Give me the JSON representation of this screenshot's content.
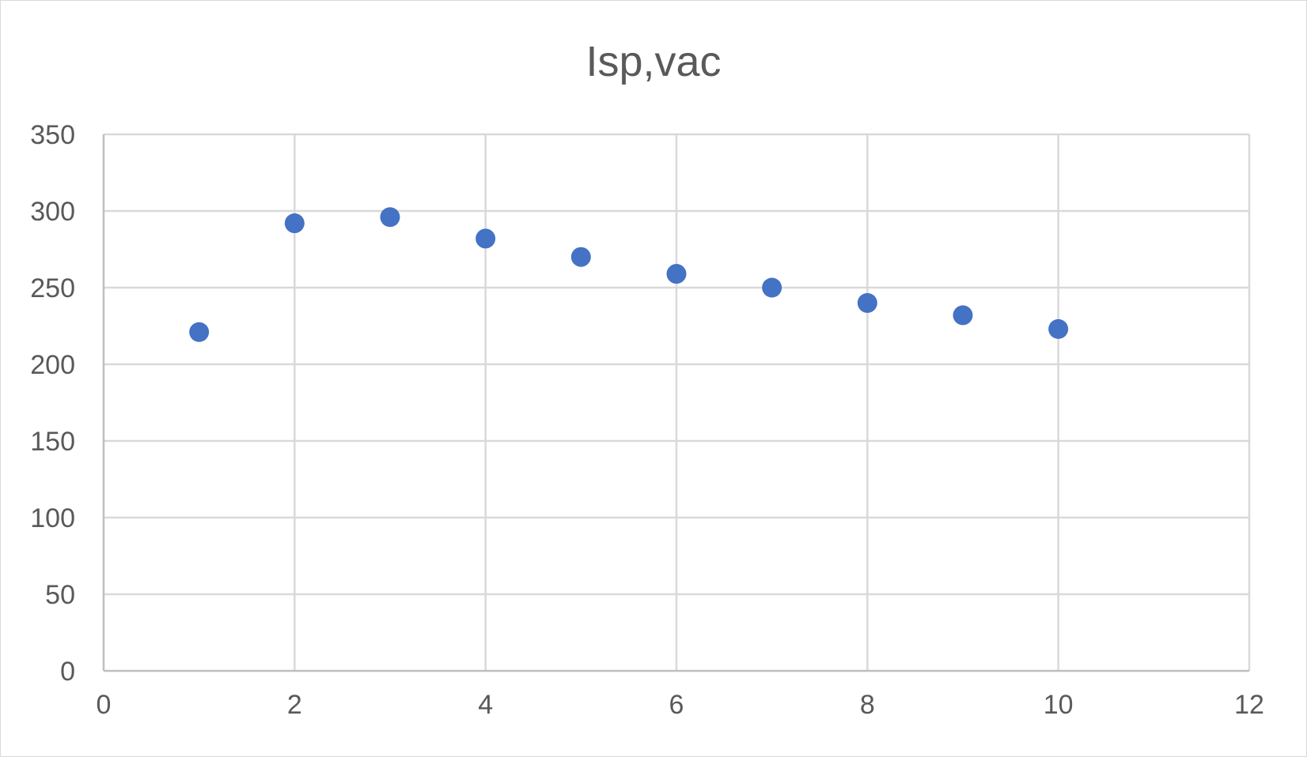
{
  "chart_data": {
    "type": "scatter",
    "title": "Isp,vac",
    "xlabel": "",
    "ylabel": "",
    "xlim": [
      0,
      12
    ],
    "ylim": [
      0,
      350
    ],
    "x_ticks": [
      0,
      2,
      4,
      6,
      8,
      10,
      12
    ],
    "y_ticks": [
      0,
      50,
      100,
      150,
      200,
      250,
      300,
      350
    ],
    "grid": true,
    "legend": "none",
    "marker_color": "#4472C4",
    "series": [
      {
        "x": [
          1,
          2,
          3,
          4,
          5,
          6,
          7,
          8,
          9,
          10
        ],
        "y": [
          221,
          292,
          296,
          282,
          270,
          259,
          250,
          240,
          232,
          223
        ]
      }
    ]
  }
}
